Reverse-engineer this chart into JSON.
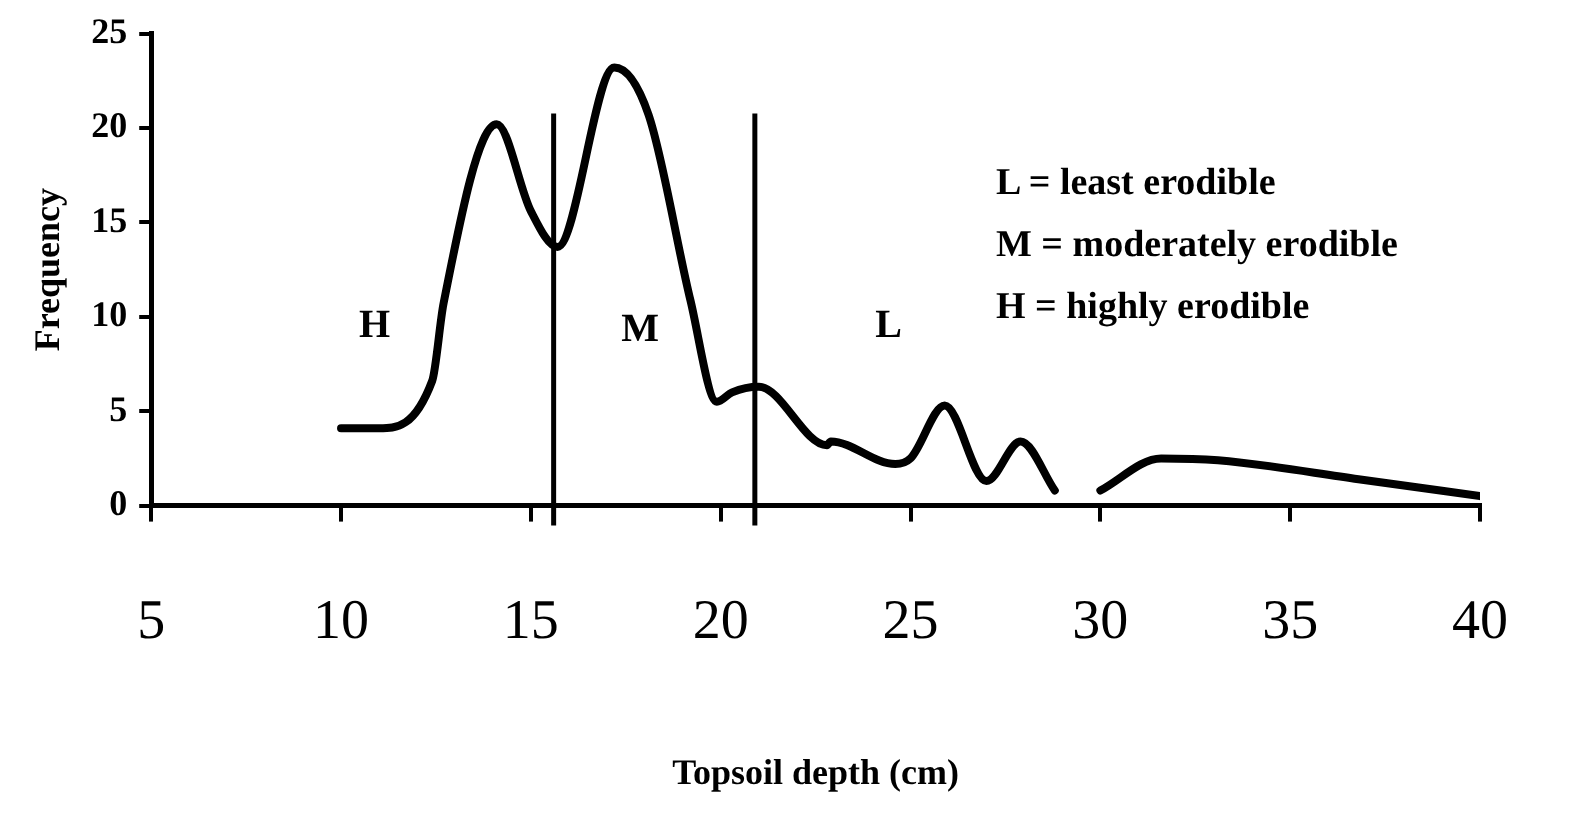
{
  "chart_data": {
    "type": "line",
    "xlabel": "Topsoil depth (cm)",
    "ylabel": "Frequency",
    "series": [
      {
        "color": "#000000",
        "x": [
          10,
          11,
          12.4,
          12.7,
          14.1,
          15.0,
          15.7,
          17.2,
          18.1,
          19.2,
          19.9,
          20.3,
          21.0,
          22.8,
          22.9,
          24.6,
          25.0,
          25.9,
          27.0,
          27.9,
          28.8,
          29.4,
          30.0,
          31.6,
          33.1,
          36.8,
          40
        ],
        "values": [
          4.1,
          4.1,
          6.6,
          10.7,
          20.2,
          15.6,
          13.7,
          23.2,
          20.7,
          10.9,
          5.5,
          6.0,
          6.3,
          3.2,
          3.4,
          2.2,
          2.5,
          5.3,
          1.3,
          3.4,
          0.8,
          null,
          0.8,
          2.5,
          2.4,
          1.4,
          0.5
        ]
      }
    ],
    "xlim": [
      5,
      40
    ],
    "xticks": [
      5,
      10,
      15,
      20,
      25,
      30,
      35,
      40
    ],
    "ylim": [
      0,
      25
    ],
    "yticks": [
      0,
      5,
      10,
      15,
      20,
      25
    ],
    "grid": false,
    "legend": false,
    "marker": "none",
    "line_style": "solid",
    "ref_lines": [
      {
        "axis": "x",
        "value": 15.6,
        "color": "#000000"
      },
      {
        "axis": "x",
        "value": 20.9,
        "color": "#000000"
      }
    ],
    "annotations": [
      "H",
      "M",
      "L",
      "L = least erodible",
      "M = moderately erodible",
      "H = highly erodible"
    ]
  }
}
